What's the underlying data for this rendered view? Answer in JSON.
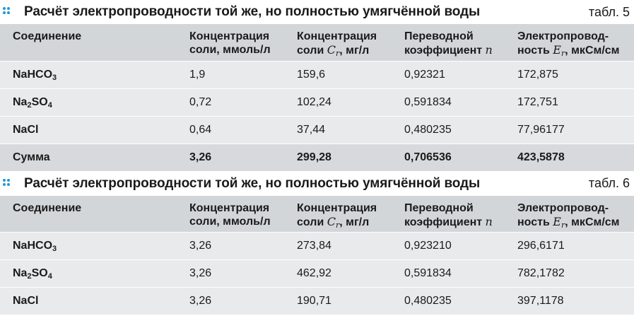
{
  "tables": [
    {
      "title": "Расчёт электропроводности той же, но полностью умягчённой воды",
      "label": "табл. 5",
      "headers": {
        "compound": "Соединение",
        "conc_mmol_1": "Концентрация",
        "conc_mmol_2": "соли, ммоль/л",
        "conc_mg_1": "Концентрация",
        "conc_mg_2a": "соли ",
        "conc_mg_var": "C",
        "conc_mg_sub": "r",
        "conc_mg_2b": ", мг/л",
        "coef_1": "Переводной",
        "coef_2a": "коэффициент ",
        "coef_var": "n",
        "cond_1": "Электропровод-",
        "cond_2a": "ность ",
        "cond_var": "E",
        "cond_sub": "r",
        "cond_2b": ", мкСм/см"
      },
      "rows": [
        {
          "name": "NaHCO",
          "sub": "3",
          "tail": "",
          "c1": "1,9",
          "c2": "159,6",
          "c3": "0,92321",
          "c4": "172,875"
        },
        {
          "name": "Na",
          "sub": "2",
          "tail": "SO",
          "sub2": "4",
          "c1": "0,72",
          "c2": "102,24",
          "c3": "0,591834",
          "c4": "172,751"
        },
        {
          "name": "NaCl",
          "sub": "",
          "tail": "",
          "c1": "0,64",
          "c2": "37,44",
          "c3": "0,480235",
          "c4": "77,96177"
        }
      ],
      "total": {
        "name": "Сумма",
        "c1": "3,26",
        "c2": "299,28",
        "c3": "0,706536",
        "c4": "423,5878"
      }
    },
    {
      "title": "Расчёт электропроводности той же, но полностью умягчённой воды",
      "label": "табл. 6",
      "headers": {
        "compound": "Соединение",
        "conc_mmol_1": "Концентрация",
        "conc_mmol_2": "соли, ммоль/л",
        "conc_mg_1": "Концентрация",
        "conc_mg_2a": "соли ",
        "conc_mg_var": "C",
        "conc_mg_sub": "r",
        "conc_mg_2b": ", мг/л",
        "coef_1": "Переводной",
        "coef_2a": "коэффициент ",
        "coef_var": "n",
        "cond_1": "Электропровод-",
        "cond_2a": "ность ",
        "cond_var": "E",
        "cond_sub": "r",
        "cond_2b": ", мкСм/см"
      },
      "rows": [
        {
          "name": "NaHCO",
          "sub": "3",
          "tail": "",
          "c1": "3,26",
          "c2": "273,84",
          "c3": "0,923210",
          "c4": "296,6171"
        },
        {
          "name": "Na",
          "sub": "2",
          "tail": "SO",
          "sub2": "4",
          "c1": "3,26",
          "c2": "462,92",
          "c3": "0,591834",
          "c4": "782,1782"
        },
        {
          "name": "NaCl",
          "sub": "",
          "tail": "",
          "c1": "3,26",
          "c2": "190,71",
          "c3": "0,480235",
          "c4": "397,1178"
        }
      ]
    }
  ],
  "colors": {
    "accent_dots": "#1f9ad6",
    "header_bg": "#d3d6d9",
    "row_bg": "#e9eaec",
    "total_bg": "#d7d9dc"
  }
}
